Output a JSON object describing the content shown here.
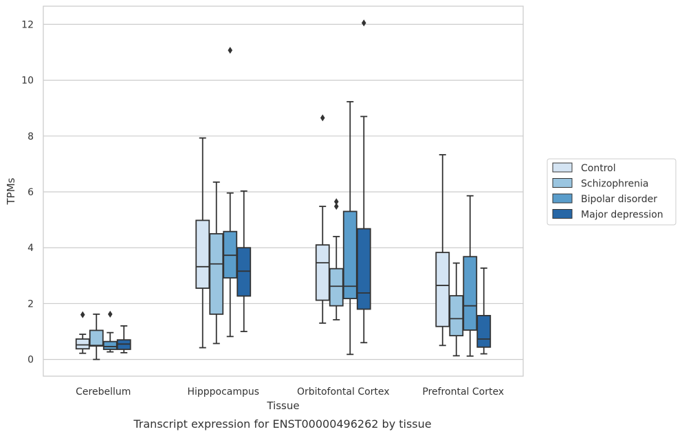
{
  "caption": "Transcript expression for ENST00000496262 by tissue",
  "chart_data": {
    "type": "box",
    "xlabel": "Tissue",
    "ylabel": "TPMs",
    "ylim": [
      -0.6,
      12.65
    ],
    "yticks": [
      "0",
      "2",
      "4",
      "6",
      "8",
      "10",
      "12"
    ],
    "ytick_values": [
      0,
      2,
      4,
      6,
      8,
      10,
      12
    ],
    "grid": "horizontal",
    "legend_position": "right",
    "categories": [
      "Cerebellum",
      "Hipppocampus",
      "Orbitofontal Cortex",
      "Prefrontal Cortex"
    ],
    "series": [
      {
        "name": "Control",
        "color": "#d4e4f3",
        "boxes": [
          {
            "whislo": 0.22,
            "q1": 0.38,
            "med": 0.52,
            "q3": 0.73,
            "whishi": 0.9,
            "fliers": [
              1.6
            ]
          },
          {
            "whislo": 0.42,
            "q1": 2.55,
            "med": 3.32,
            "q3": 4.98,
            "whishi": 7.93,
            "fliers": []
          },
          {
            "whislo": 1.3,
            "q1": 2.12,
            "med": 3.46,
            "q3": 4.1,
            "whishi": 5.48,
            "fliers": [
              8.65
            ]
          },
          {
            "whislo": 0.5,
            "q1": 1.18,
            "med": 2.65,
            "q3": 3.83,
            "whishi": 7.33,
            "fliers": []
          }
        ]
      },
      {
        "name": "Schizophrenia",
        "color": "#9ac5e0",
        "boxes": [
          {
            "whislo": 0.0,
            "q1": 0.48,
            "med": 0.5,
            "q3": 1.04,
            "whishi": 1.62,
            "fliers": []
          },
          {
            "whislo": 0.57,
            "q1": 1.62,
            "med": 3.42,
            "q3": 4.5,
            "whishi": 6.35,
            "fliers": []
          },
          {
            "whislo": 1.42,
            "q1": 1.92,
            "med": 2.62,
            "q3": 3.25,
            "whishi": 4.4,
            "fliers": [
              5.48,
              5.65
            ]
          },
          {
            "whislo": 0.13,
            "q1": 0.85,
            "med": 1.46,
            "q3": 2.28,
            "whishi": 3.45,
            "fliers": []
          }
        ]
      },
      {
        "name": "Bipolar disorder",
        "color": "#5a9dcb",
        "boxes": [
          {
            "whislo": 0.27,
            "q1": 0.36,
            "med": 0.46,
            "q3": 0.64,
            "whishi": 0.96,
            "fliers": [
              1.62
            ]
          },
          {
            "whislo": 0.82,
            "q1": 2.92,
            "med": 3.73,
            "q3": 4.58,
            "whishi": 5.96,
            "fliers": [
              11.07
            ]
          },
          {
            "whislo": 0.18,
            "q1": 2.18,
            "med": 2.62,
            "q3": 5.3,
            "whishi": 9.23,
            "fliers": []
          },
          {
            "whislo": 0.12,
            "q1": 1.05,
            "med": 1.92,
            "q3": 3.68,
            "whishi": 5.86,
            "fliers": []
          }
        ]
      },
      {
        "name": "Major depression",
        "color": "#2767a6",
        "boxes": [
          {
            "whislo": 0.24,
            "q1": 0.36,
            "med": 0.55,
            "q3": 0.7,
            "whishi": 1.2,
            "fliers": []
          },
          {
            "whislo": 1.0,
            "q1": 2.27,
            "med": 3.16,
            "q3": 4.0,
            "whishi": 6.03,
            "fliers": []
          },
          {
            "whislo": 0.6,
            "q1": 1.8,
            "med": 2.38,
            "q3": 4.68,
            "whishi": 8.7,
            "fliers": [
              12.05
            ]
          },
          {
            "whislo": 0.2,
            "q1": 0.44,
            "med": 0.73,
            "q3": 1.57,
            "whishi": 3.27,
            "fliers": []
          }
        ]
      }
    ]
  }
}
